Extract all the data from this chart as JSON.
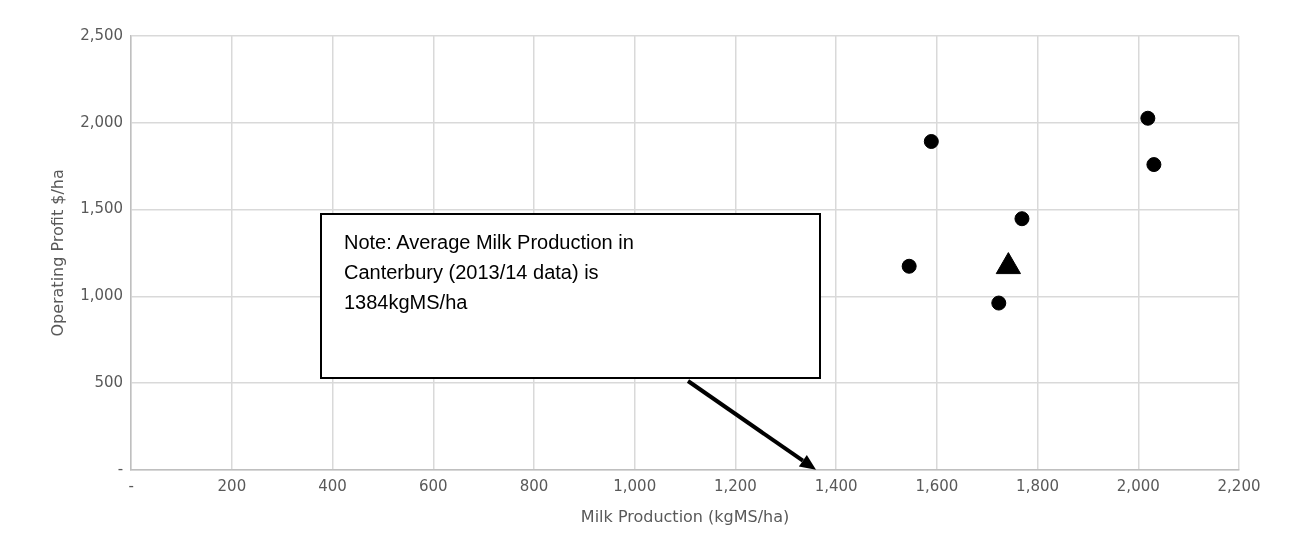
{
  "chart_data": {
    "type": "scatter",
    "xlabel": "Milk Production (kgMS/ha)",
    "ylabel": "Operating Profit $/ha",
    "series": [
      {
        "color": "#000000",
        "marker": "circle",
        "x": [
          1545,
          1589,
          1769,
          1723,
          2019,
          2031
        ],
        "values": [
          1173,
          1892,
          1447,
          961,
          2026,
          1759
        ]
      },
      {
        "color": "#000000",
        "marker": "triangle",
        "x": [
          1742
        ],
        "values": [
          1171
        ]
      }
    ],
    "xlim": [
      0,
      2200
    ],
    "xticks": [
      {
        "value": 0,
        "label": "-"
      },
      200,
      400,
      600,
      800,
      {
        "value": 1000,
        "label": "1,000"
      },
      {
        "value": 1200,
        "label": "1,200"
      },
      {
        "value": 1400,
        "label": "1,400"
      },
      {
        "value": 1600,
        "label": "1,600"
      },
      {
        "value": 1800,
        "label": "1,800"
      },
      {
        "value": 2000,
        "label": "2,000"
      },
      {
        "value": 2200,
        "label": "2,200"
      }
    ],
    "ylim": [
      0,
      2500
    ],
    "yticks": [
      {
        "value": 0,
        "label": "-"
      },
      500,
      {
        "value": 1000,
        "label": "1,000"
      },
      {
        "value": 1500,
        "label": "1,500"
      },
      {
        "value": 2000,
        "label": "2,000"
      },
      {
        "value": 2500,
        "label": "2,500"
      }
    ],
    "grid": true,
    "legend": false,
    "annotations": [
      "Note: Average Milk Production in Canterbury (2013/14 data) is 1384kgMS/ha"
    ]
  }
}
